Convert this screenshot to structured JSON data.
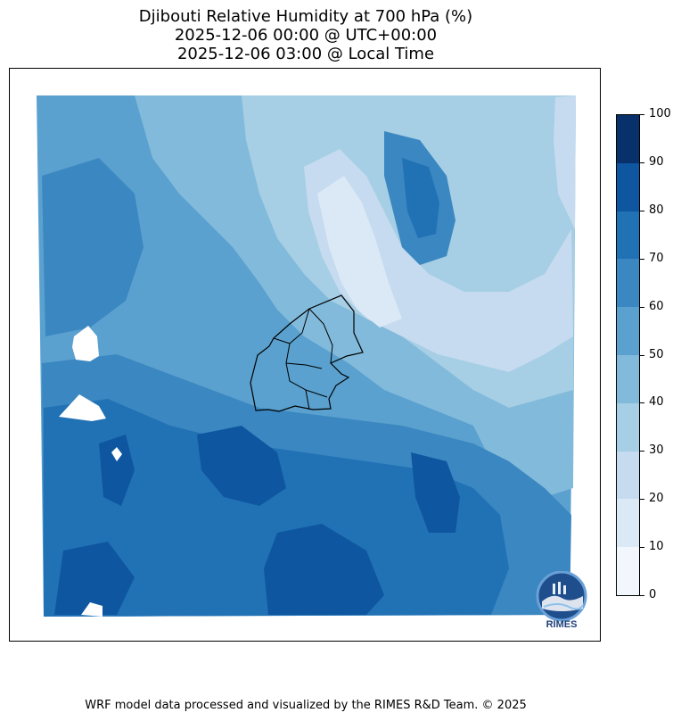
{
  "title": {
    "line1": "Djibouti Relative Humidity at 700 hPa (%)",
    "line2": "2025-12-06 00:00 @ UTC+00:00",
    "line3": "2025-12-06 03:00 @ Local Time"
  },
  "colorbar": {
    "ticks": [
      "0",
      "10",
      "20",
      "30",
      "40",
      "50",
      "60",
      "70",
      "80",
      "90",
      "100"
    ],
    "colors": [
      "#f1f7fd",
      "#dbe9f6",
      "#c6dbef",
      "#a6cee4",
      "#82badb",
      "#5aa1cf",
      "#3b87c1",
      "#2171b5",
      "#0f56a0",
      "#08306b"
    ]
  },
  "logo": {
    "text": "RIMES",
    "name": "rimes-logo"
  },
  "footer": "WRF model data processed and visualized by the RIMES R&D Team. © 2025",
  "map": {
    "field": "relative humidity at 700 hPa",
    "units": "%",
    "region_outline": "Djibouti border and regions"
  }
}
